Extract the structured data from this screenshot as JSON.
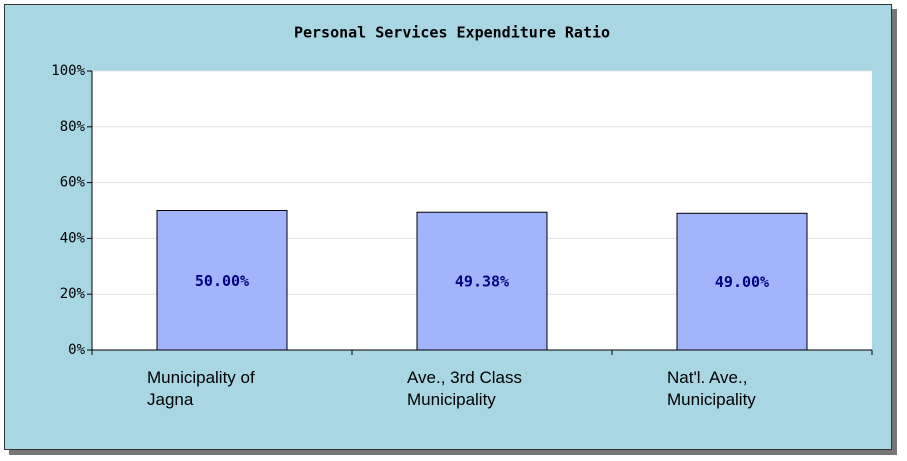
{
  "chart_data": {
    "type": "bar",
    "title": "Personal Services Expenditure Ratio",
    "categories": [
      "Municipality of\nJagna",
      "Ave., 3rd Class\nMunicipality",
      "Nat'l. Ave.,\nMunicipality"
    ],
    "values": [
      50,
      49.38,
      49
    ],
    "value_labels": [
      "50.00%",
      "49.38%",
      "49.00%"
    ],
    "color": "#a2b5fc",
    "ylim": [
      0,
      100
    ],
    "yticks": [
      {
        "value": 0,
        "label": "0%"
      },
      {
        "value": 20,
        "label": "20%"
      },
      {
        "value": 40,
        "label": "40%"
      },
      {
        "value": 60,
        "label": "60%"
      },
      {
        "value": 80,
        "label": "80%"
      },
      {
        "value": 100,
        "label": "100%"
      }
    ],
    "grid": true
  }
}
